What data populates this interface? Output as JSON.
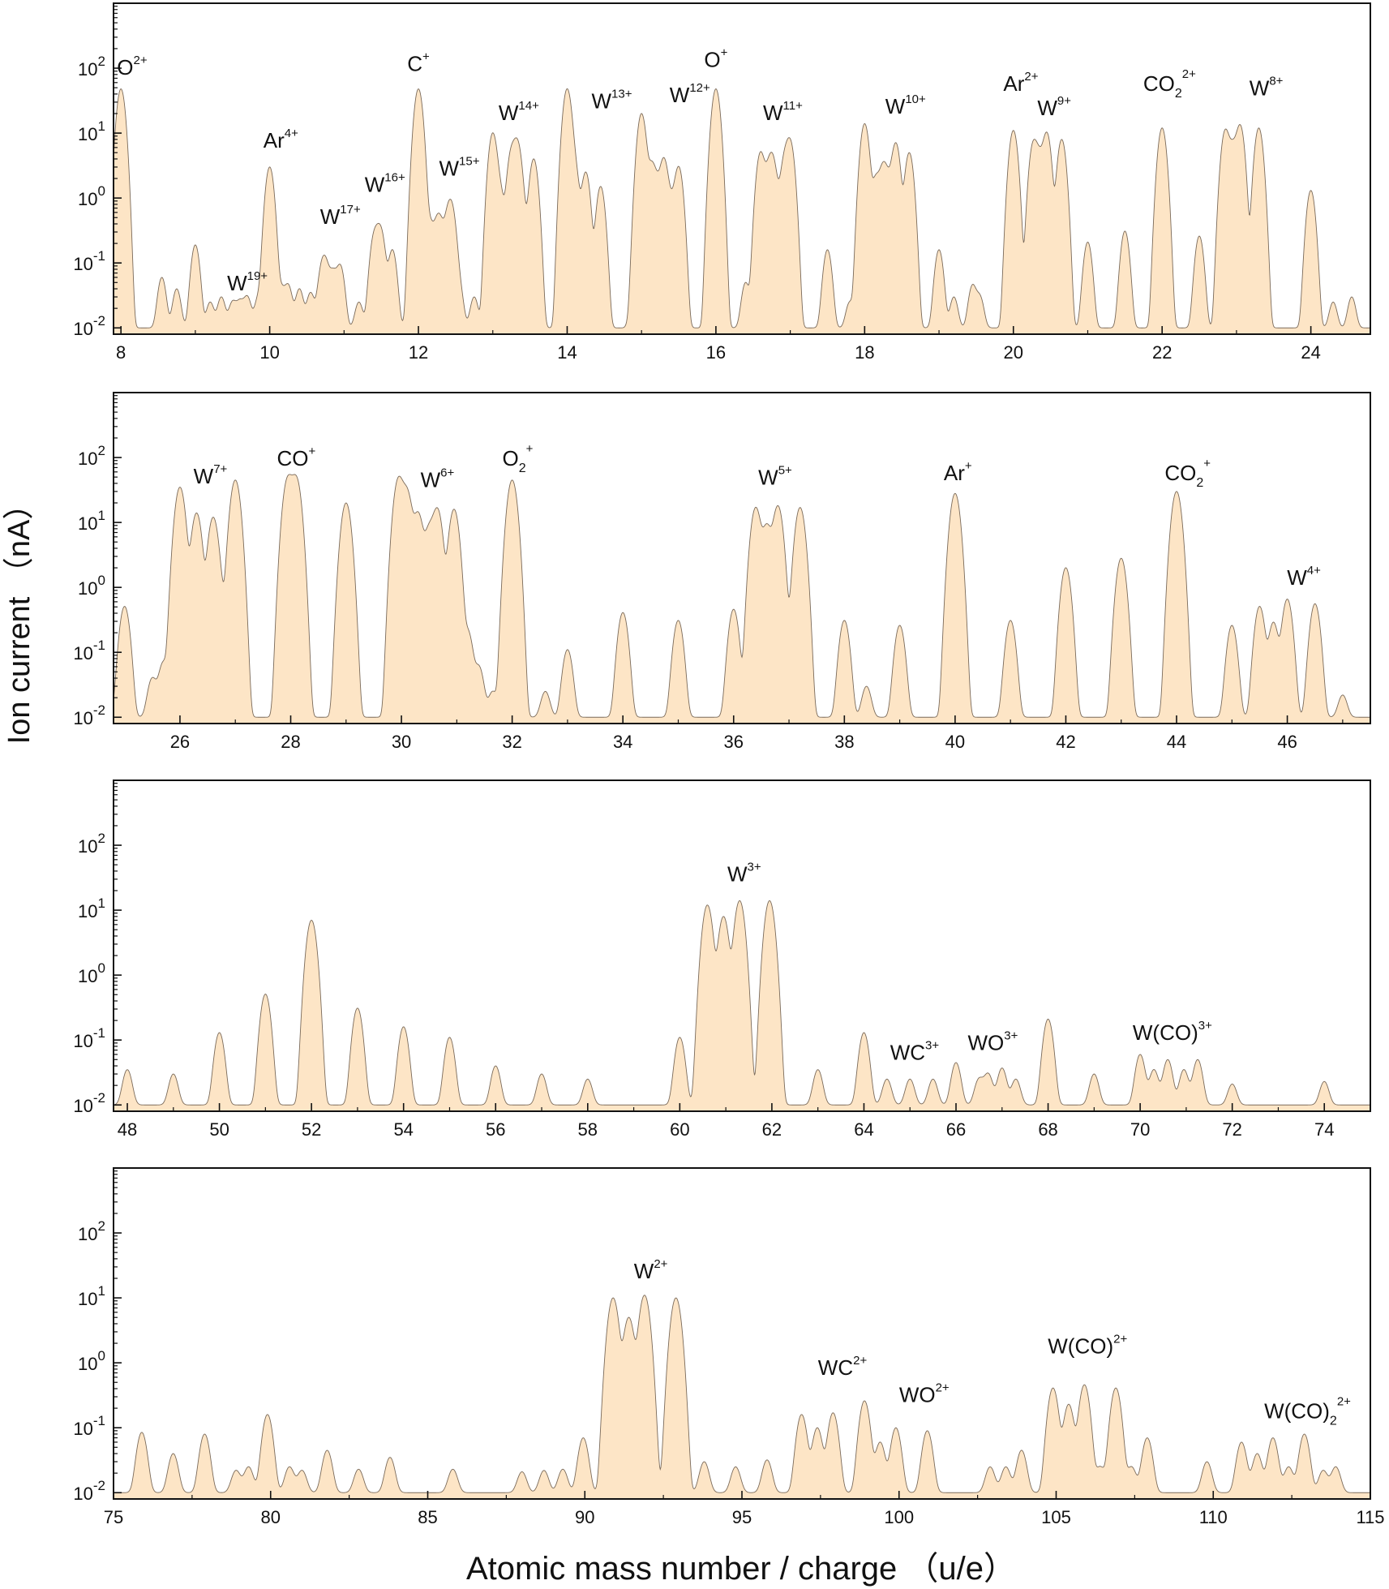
{
  "figure": {
    "ylabel": "Ion current （nA）",
    "xlabel": "Atomic mass number / charge （u/e）"
  },
  "colors": {
    "fill": "#fde5c6",
    "line": "#7a6a5a",
    "axis": "#111111"
  },
  "chart_data": [
    {
      "type": "area",
      "yscale": "log",
      "ylim": [
        0.008,
        1000
      ],
      "xlim": [
        7.9,
        24.8
      ],
      "xticks": [
        8,
        10,
        12,
        14,
        16,
        18,
        20,
        22,
        24
      ],
      "yticks": [
        0.01,
        0.1,
        1,
        10,
        100
      ],
      "ytick_labels": [
        {
          "base": "10",
          "exp": "-2"
        },
        {
          "base": "10",
          "exp": "-1"
        },
        {
          "base": "10",
          "exp": "0"
        },
        {
          "base": "10",
          "exp": "1"
        },
        {
          "base": "10",
          "exp": "2"
        }
      ],
      "baseline": 0.01,
      "peak_width": 0.045,
      "peaks": [
        [
          8.0,
          48
        ],
        [
          8.55,
          0.05
        ],
        [
          8.75,
          0.03
        ],
        [
          9.0,
          0.18
        ],
        [
          9.2,
          0.015
        ],
        [
          9.35,
          0.02
        ],
        [
          9.5,
          0.015
        ],
        [
          9.6,
          0.015
        ],
        [
          9.7,
          0.02
        ],
        [
          9.85,
          0.02
        ],
        [
          10.0,
          3.0
        ],
        [
          10.15,
          0.03
        ],
        [
          10.25,
          0.035
        ],
        [
          10.4,
          0.03
        ],
        [
          10.55,
          0.025
        ],
        [
          10.7,
          0.06
        ],
        [
          10.75,
          0.08
        ],
        [
          10.85,
          0.06
        ],
        [
          10.95,
          0.08
        ],
        [
          11.2,
          0.015
        ],
        [
          11.4,
          0.2
        ],
        [
          11.45,
          0.15
        ],
        [
          11.5,
          0.25
        ],
        [
          11.65,
          0.15
        ],
        [
          11.9,
          0.02
        ],
        [
          12.0,
          48
        ],
        [
          12.15,
          0.4
        ],
        [
          12.25,
          0.35
        ],
        [
          12.3,
          0.3
        ],
        [
          12.4,
          0.5
        ],
        [
          12.45,
          0.6
        ],
        [
          12.55,
          0.03
        ],
        [
          12.75,
          0.02
        ],
        [
          13.0,
          10
        ],
        [
          13.1,
          1.2
        ],
        [
          13.25,
          5
        ],
        [
          13.33,
          7
        ],
        [
          13.4,
          0.5
        ],
        [
          13.55,
          4
        ],
        [
          14.0,
          48
        ],
        [
          14.1,
          3
        ],
        [
          14.25,
          2.5
        ],
        [
          14.45,
          1.5
        ],
        [
          14.9,
          0.02
        ],
        [
          15.0,
          20
        ],
        [
          15.13,
          3
        ],
        [
          15.2,
          1.5
        ],
        [
          15.3,
          4
        ],
        [
          15.4,
          0.8
        ],
        [
          15.5,
          3
        ],
        [
          16.0,
          48
        ],
        [
          16.4,
          0.04
        ],
        [
          16.6,
          5
        ],
        [
          16.7,
          2
        ],
        [
          16.76,
          4
        ],
        [
          16.85,
          0.6
        ],
        [
          16.93,
          4
        ],
        [
          17.0,
          7
        ],
        [
          17.5,
          0.15
        ],
        [
          17.8,
          0.015
        ],
        [
          18.0,
          14
        ],
        [
          18.15,
          2
        ],
        [
          18.25,
          3
        ],
        [
          18.32,
          1.5
        ],
        [
          18.42,
          7
        ],
        [
          18.6,
          5
        ],
        [
          19.0,
          0.15
        ],
        [
          19.2,
          0.02
        ],
        [
          19.45,
          0.035
        ],
        [
          19.55,
          0.02
        ],
        [
          20.0,
          11
        ],
        [
          20.27,
          7
        ],
        [
          20.35,
          4
        ],
        [
          20.45,
          10
        ],
        [
          20.65,
          8
        ],
        [
          21.0,
          0.2
        ],
        [
          21.5,
          0.3
        ],
        [
          22.0,
          12
        ],
        [
          22.5,
          0.25
        ],
        [
          22.85,
          11
        ],
        [
          22.95,
          6
        ],
        [
          23.05,
          13
        ],
        [
          23.3,
          12
        ],
        [
          24.0,
          1.3
        ],
        [
          24.3,
          0.015
        ],
        [
          24.55,
          0.02
        ]
      ],
      "labels": [
        {
          "x": 8.15,
          "y": 80,
          "text": "O",
          "sup": "2+"
        },
        {
          "x": 9.7,
          "y": 0.038,
          "text": "W",
          "sup": "19+"
        },
        {
          "x": 10.15,
          "y": 6,
          "text": "Ar",
          "sup": "4+"
        },
        {
          "x": 10.95,
          "y": 0.4,
          "text": "W",
          "sup": "17+"
        },
        {
          "x": 11.55,
          "y": 1.25,
          "text": "W",
          "sup": "16+"
        },
        {
          "x": 12.55,
          "y": 2.2,
          "text": "W",
          "sup": "15+"
        },
        {
          "x": 12.0,
          "y": 90,
          "text": "C",
          "sup": "+"
        },
        {
          "x": 13.35,
          "y": 16,
          "text": "W",
          "sup": "14+"
        },
        {
          "x": 14.6,
          "y": 24,
          "text": "W",
          "sup": "13+"
        },
        {
          "x": 15.65,
          "y": 30,
          "text": "W",
          "sup": "12+"
        },
        {
          "x": 16.0,
          "y": 105,
          "text": "O",
          "sup": "+"
        },
        {
          "x": 16.9,
          "y": 16,
          "text": "W",
          "sup": "11+"
        },
        {
          "x": 18.55,
          "y": 20,
          "text": "W",
          "sup": "10+"
        },
        {
          "x": 20.1,
          "y": 45,
          "text": "Ar",
          "sup": "2+"
        },
        {
          "x": 20.55,
          "y": 19,
          "text": "W",
          "sup": "9+"
        },
        {
          "x": 22.1,
          "y": 45,
          "text": "CO",
          "sub": "2",
          "sup": "2+"
        },
        {
          "x": 23.4,
          "y": 38,
          "text": "W",
          "sup": "8+"
        }
      ]
    },
    {
      "type": "area",
      "yscale": "log",
      "ylim": [
        0.008,
        1000
      ],
      "xlim": [
        24.8,
        47.5
      ],
      "xticks": [
        26,
        28,
        30,
        32,
        34,
        36,
        38,
        40,
        42,
        44,
        46
      ],
      "yticks": [
        0.01,
        0.1,
        1,
        10,
        100
      ],
      "ytick_labels": [
        {
          "base": "10",
          "exp": "-2"
        },
        {
          "base": "10",
          "exp": "-1"
        },
        {
          "base": "10",
          "exp": "0"
        },
        {
          "base": "10",
          "exp": "1"
        },
        {
          "base": "10",
          "exp": "2"
        }
      ],
      "baseline": 0.01,
      "peak_width": 0.07,
      "peaks": [
        [
          25.0,
          0.5
        ],
        [
          25.5,
          0.03
        ],
        [
          25.7,
          0.06
        ],
        [
          26.0,
          35
        ],
        [
          26.3,
          14
        ],
        [
          26.6,
          12
        ],
        [
          26.75,
          0.5
        ],
        [
          27.0,
          45
        ],
        [
          27.95,
          48
        ],
        [
          28.1,
          48
        ],
        [
          29.0,
          20
        ],
        [
          29.95,
          48
        ],
        [
          30.1,
          30
        ],
        [
          30.3,
          14
        ],
        [
          30.5,
          8
        ],
        [
          30.65,
          16
        ],
        [
          30.95,
          16
        ],
        [
          31.2,
          0.2
        ],
        [
          31.4,
          0.05
        ],
        [
          31.65,
          0.015
        ],
        [
          32.0,
          45
        ],
        [
          32.6,
          0.015
        ],
        [
          33.0,
          0.1
        ],
        [
          34.0,
          0.4
        ],
        [
          35.0,
          0.3
        ],
        [
          36.0,
          0.45
        ],
        [
          36.4,
          17
        ],
        [
          36.6,
          9
        ],
        [
          36.8,
          18
        ],
        [
          37.0,
          0.1
        ],
        [
          37.2,
          17
        ],
        [
          38.0,
          0.3
        ],
        [
          38.4,
          0.02
        ],
        [
          39.0,
          0.25
        ],
        [
          40.0,
          28
        ],
        [
          41.0,
          0.3
        ],
        [
          42.0,
          2
        ],
        [
          43.0,
          2.8
        ],
        [
          44.0,
          30
        ],
        [
          45.0,
          0.25
        ],
        [
          45.5,
          0.5
        ],
        [
          45.75,
          0.28
        ],
        [
          46.0,
          0.65
        ],
        [
          46.5,
          0.55
        ],
        [
          47.0,
          0.012
        ]
      ],
      "labels": [
        {
          "x": 26.55,
          "y": 40,
          "text": "W",
          "sup": "7+"
        },
        {
          "x": 28.1,
          "y": 75,
          "text": "CO",
          "sup": "+"
        },
        {
          "x": 30.65,
          "y": 35,
          "text": "W",
          "sup": "6+"
        },
        {
          "x": 32.1,
          "y": 75,
          "text": "O",
          "sub": "2",
          "sup": "+"
        },
        {
          "x": 36.75,
          "y": 38,
          "text": "W",
          "sup": "5+"
        },
        {
          "x": 40.05,
          "y": 45,
          "text": "Ar",
          "sup": "+"
        },
        {
          "x": 44.2,
          "y": 45,
          "text": "CO",
          "sub": "2",
          "sup": "+"
        },
        {
          "x": 46.3,
          "y": 1.1,
          "text": "W",
          "sup": "4+"
        }
      ]
    },
    {
      "type": "area",
      "yscale": "log",
      "ylim": [
        0.008,
        1000
      ],
      "xlim": [
        47.7,
        75.0
      ],
      "xticks": [
        48,
        50,
        52,
        54,
        56,
        58,
        60,
        62,
        64,
        66,
        68,
        70,
        72,
        74
      ],
      "yticks": [
        0.01,
        0.1,
        1,
        10,
        100
      ],
      "ytick_labels": [
        {
          "base": "10",
          "exp": "-2"
        },
        {
          "base": "10",
          "exp": "-1"
        },
        {
          "base": "10",
          "exp": "0"
        },
        {
          "base": "10",
          "exp": "1"
        },
        {
          "base": "10",
          "exp": "2"
        }
      ],
      "baseline": 0.01,
      "peak_width": 0.085,
      "peaks": [
        [
          48.0,
          0.025
        ],
        [
          49.0,
          0.02
        ],
        [
          50.0,
          0.12
        ],
        [
          51.0,
          0.5
        ],
        [
          52.0,
          7
        ],
        [
          53.0,
          0.3
        ],
        [
          54.0,
          0.15
        ],
        [
          55.0,
          0.1
        ],
        [
          56.0,
          0.03
        ],
        [
          57.0,
          0.02
        ],
        [
          58.0,
          0.015
        ],
        [
          60.0,
          0.1
        ],
        [
          60.6,
          12
        ],
        [
          60.95,
          8
        ],
        [
          61.3,
          14
        ],
        [
          61.95,
          14
        ],
        [
          63.0,
          0.025
        ],
        [
          64.0,
          0.12
        ],
        [
          64.5,
          0.015
        ],
        [
          65.0,
          0.015
        ],
        [
          65.5,
          0.015
        ],
        [
          66.0,
          0.035
        ],
        [
          66.5,
          0.015
        ],
        [
          66.7,
          0.02
        ],
        [
          67.0,
          0.027
        ],
        [
          67.3,
          0.015
        ],
        [
          68.0,
          0.2
        ],
        [
          69.0,
          0.02
        ],
        [
          70.0,
          0.05
        ],
        [
          70.3,
          0.025
        ],
        [
          70.6,
          0.04
        ],
        [
          70.95,
          0.025
        ],
        [
          71.25,
          0.04
        ],
        [
          72.0,
          0.011
        ],
        [
          74.0,
          0.013
        ]
      ],
      "labels": [
        {
          "x": 61.4,
          "y": 28,
          "text": "W",
          "sup": "3+"
        },
        {
          "x": 65.1,
          "y": 0.05,
          "text": "WC",
          "sup": "3+"
        },
        {
          "x": 66.8,
          "y": 0.07,
          "text": "WO",
          "sup": "3+"
        },
        {
          "x": 70.7,
          "y": 0.1,
          "text": "W(CO)",
          "sup": "3+"
        }
      ]
    },
    {
      "type": "area",
      "yscale": "log",
      "ylim": [
        0.008,
        1000
      ],
      "xlim": [
        75,
        115
      ],
      "xticks": [
        75,
        80,
        85,
        90,
        95,
        100,
        105,
        110,
        115
      ],
      "yticks": [
        0.01,
        0.1,
        1,
        10,
        100
      ],
      "ytick_labels": [
        {
          "base": "10",
          "exp": "-2"
        },
        {
          "base": "10",
          "exp": "-1"
        },
        {
          "base": "10",
          "exp": "0"
        },
        {
          "base": "10",
          "exp": "1"
        },
        {
          "base": "10",
          "exp": "2"
        }
      ],
      "baseline": 0.01,
      "peak_width": 0.13,
      "peaks": [
        [
          75.9,
          0.075
        ],
        [
          76.9,
          0.03
        ],
        [
          77.9,
          0.07
        ],
        [
          78.9,
          0.012
        ],
        [
          79.3,
          0.015
        ],
        [
          79.9,
          0.15
        ],
        [
          80.6,
          0.015
        ],
        [
          81.0,
          0.012
        ],
        [
          81.8,
          0.035
        ],
        [
          82.8,
          0.013
        ],
        [
          83.8,
          0.025
        ],
        [
          85.8,
          0.013
        ],
        [
          88.0,
          0.011
        ],
        [
          88.7,
          0.012
        ],
        [
          89.3,
          0.013
        ],
        [
          89.95,
          0.06
        ],
        [
          90.9,
          10
        ],
        [
          91.4,
          5
        ],
        [
          91.9,
          11
        ],
        [
          92.9,
          10
        ],
        [
          93.8,
          0.02
        ],
        [
          94.8,
          0.015
        ],
        [
          95.8,
          0.022
        ],
        [
          96.9,
          0.15
        ],
        [
          97.4,
          0.09
        ],
        [
          97.9,
          0.16
        ],
        [
          98.9,
          0.25
        ],
        [
          99.4,
          0.05
        ],
        [
          99.9,
          0.09
        ],
        [
          100.9,
          0.08
        ],
        [
          102.9,
          0.015
        ],
        [
          103.4,
          0.015
        ],
        [
          103.9,
          0.035
        ],
        [
          104.9,
          0.4
        ],
        [
          105.4,
          0.22
        ],
        [
          105.9,
          0.45
        ],
        [
          106.4,
          0.015
        ],
        [
          106.9,
          0.4
        ],
        [
          107.4,
          0.015
        ],
        [
          107.9,
          0.06
        ],
        [
          109.8,
          0.02
        ],
        [
          110.9,
          0.05
        ],
        [
          111.4,
          0.03
        ],
        [
          111.9,
          0.06
        ],
        [
          112.4,
          0.015
        ],
        [
          112.9,
          0.07
        ],
        [
          113.5,
          0.012
        ],
        [
          113.9,
          0.015
        ]
      ],
      "labels": [
        {
          "x": 92.1,
          "y": 20,
          "text": "W",
          "sup": "2+"
        },
        {
          "x": 98.2,
          "y": 0.65,
          "text": "WC",
          "sup": "2+"
        },
        {
          "x": 100.8,
          "y": 0.25,
          "text": "WO",
          "sup": "2+"
        },
        {
          "x": 106.0,
          "y": 1.4,
          "text": "W(CO)",
          "sup": "2+"
        },
        {
          "x": 113.0,
          "y": 0.14,
          "text": "W(CO)",
          "sub": "2",
          "sup": "2+"
        }
      ]
    }
  ]
}
